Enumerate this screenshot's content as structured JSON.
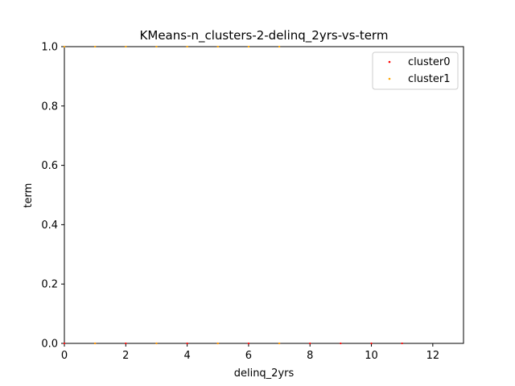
{
  "chart_data": {
    "type": "scatter",
    "title": "KMeans-n_clusters-2-delinq_2yrs-vs-term",
    "xlabel": "delinq_2yrs",
    "ylabel": "term",
    "xlim": [
      0,
      13
    ],
    "ylim": [
      0,
      1
    ],
    "x_ticks": [
      "0",
      "2",
      "4",
      "6",
      "8",
      "10",
      "12"
    ],
    "y_ticks": [
      "0.0",
      "0.2",
      "0.4",
      "0.6",
      "0.8",
      "1.0"
    ],
    "grid": false,
    "legend_position": "top-right",
    "series": [
      {
        "name": "cluster0",
        "color": "#ff0000",
        "points": [
          {
            "x": 0,
            "y": 0
          },
          {
            "x": 1,
            "y": 0
          },
          {
            "x": 2,
            "y": 0
          },
          {
            "x": 3,
            "y": 0
          },
          {
            "x": 4,
            "y": 0
          },
          {
            "x": 5,
            "y": 0
          },
          {
            "x": 6,
            "y": 0
          },
          {
            "x": 7,
            "y": 0
          },
          {
            "x": 8,
            "y": 0
          },
          {
            "x": 9,
            "y": 0
          },
          {
            "x": 10,
            "y": 0
          },
          {
            "x": 11,
            "y": 0
          }
        ]
      },
      {
        "name": "cluster1",
        "color": "#ffa500",
        "points": [
          {
            "x": 0,
            "y": 1
          },
          {
            "x": 1,
            "y": 1
          },
          {
            "x": 2,
            "y": 1
          },
          {
            "x": 3,
            "y": 1
          },
          {
            "x": 4,
            "y": 1
          },
          {
            "x": 5,
            "y": 1
          },
          {
            "x": 6,
            "y": 1
          },
          {
            "x": 7,
            "y": 1
          },
          {
            "x": 1,
            "y": 0
          },
          {
            "x": 3,
            "y": 0
          },
          {
            "x": 5,
            "y": 0
          },
          {
            "x": 7,
            "y": 0
          }
        ]
      }
    ]
  }
}
